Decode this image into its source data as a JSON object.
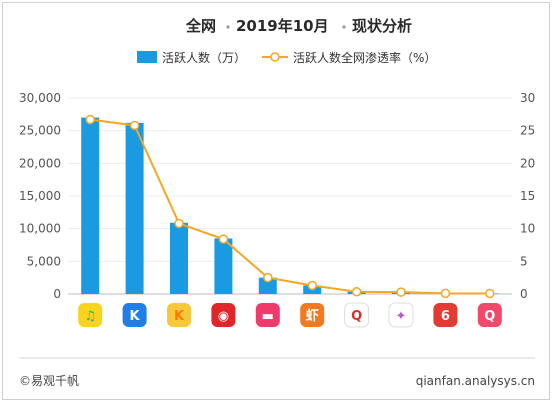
{
  "chart_data": {
    "type": "bar",
    "title": "全网 · 2019年10月 · 现状分析",
    "title_parts": [
      "全网",
      "2019年10月",
      "现状分析"
    ],
    "legend": [
      "活跃人数（万）",
      "活跃人数全网渗透率（%）"
    ],
    "legend_placement": "top",
    "categories": [
      "QQ音乐",
      "酷狗音乐",
      "酷我音乐",
      "网易云音乐",
      "咪咕音乐",
      "虾米音乐",
      "全民K歌",
      "唱吧",
      "网易云音乐-变体",
      "QQ音乐-变体"
    ],
    "series": [
      {
        "name": "活跃人数（万）",
        "type": "bar",
        "axis": "left",
        "values": [
          27000,
          26200,
          10900,
          8500,
          2500,
          1300,
          350,
          280,
          100,
          80
        ],
        "color": "#1a9ae0"
      },
      {
        "name": "活跃人数全网渗透率（%）",
        "type": "line",
        "axis": "right",
        "values": [
          26.7,
          25.8,
          10.8,
          8.4,
          2.5,
          1.3,
          0.35,
          0.28,
          0.1,
          0.08
        ],
        "color": "#f5a623"
      }
    ],
    "y_left": {
      "min": 0,
      "max": 30000,
      "ticks": [
        "0",
        "5,000",
        "10,000",
        "15,000",
        "20,000",
        "25,000",
        "30,000"
      ]
    },
    "y_right": {
      "min": 0,
      "max": 30,
      "ticks": [
        "0",
        "5",
        "10",
        "15",
        "20",
        "25",
        "30"
      ]
    },
    "grid": true
  },
  "icons": [
    {
      "name": "qq-music-icon",
      "bg": "#f8d41f",
      "fg": "#1cc26b",
      "glyph": "♫"
    },
    {
      "name": "kugou-icon",
      "bg": "#1f7ee8",
      "fg": "#ffffff",
      "glyph": "K"
    },
    {
      "name": "kuwo-icon",
      "bg": "#f7c83a",
      "fg": "#ff7b00",
      "glyph": "K"
    },
    {
      "name": "netease-icon",
      "bg": "#e0252b",
      "fg": "#ffffff",
      "glyph": "◉"
    },
    {
      "name": "migu-icon",
      "bg": "#ee3b6b",
      "fg": "#ffffff",
      "glyph": "▬"
    },
    {
      "name": "xiami-icon",
      "bg": "#f47a22",
      "fg": "#ffffff",
      "glyph": "虾"
    },
    {
      "name": "quanmin-k-icon",
      "bg": "#ffffff",
      "fg": "#e02a2a",
      "glyph": "Q"
    },
    {
      "name": "changba-icon",
      "bg": "#ffffff",
      "fg": "#b455d8",
      "glyph": "✦"
    },
    {
      "name": "netease-alt-icon",
      "bg": "#e33b33",
      "fg": "#ffffff",
      "glyph": "6"
    },
    {
      "name": "qq-kge-icon",
      "bg": "#ef4a6b",
      "fg": "#ffffff",
      "glyph": "Q"
    }
  ],
  "footer": {
    "left": "©易观千帆",
    "right": "qianfan.analysys.cn"
  }
}
